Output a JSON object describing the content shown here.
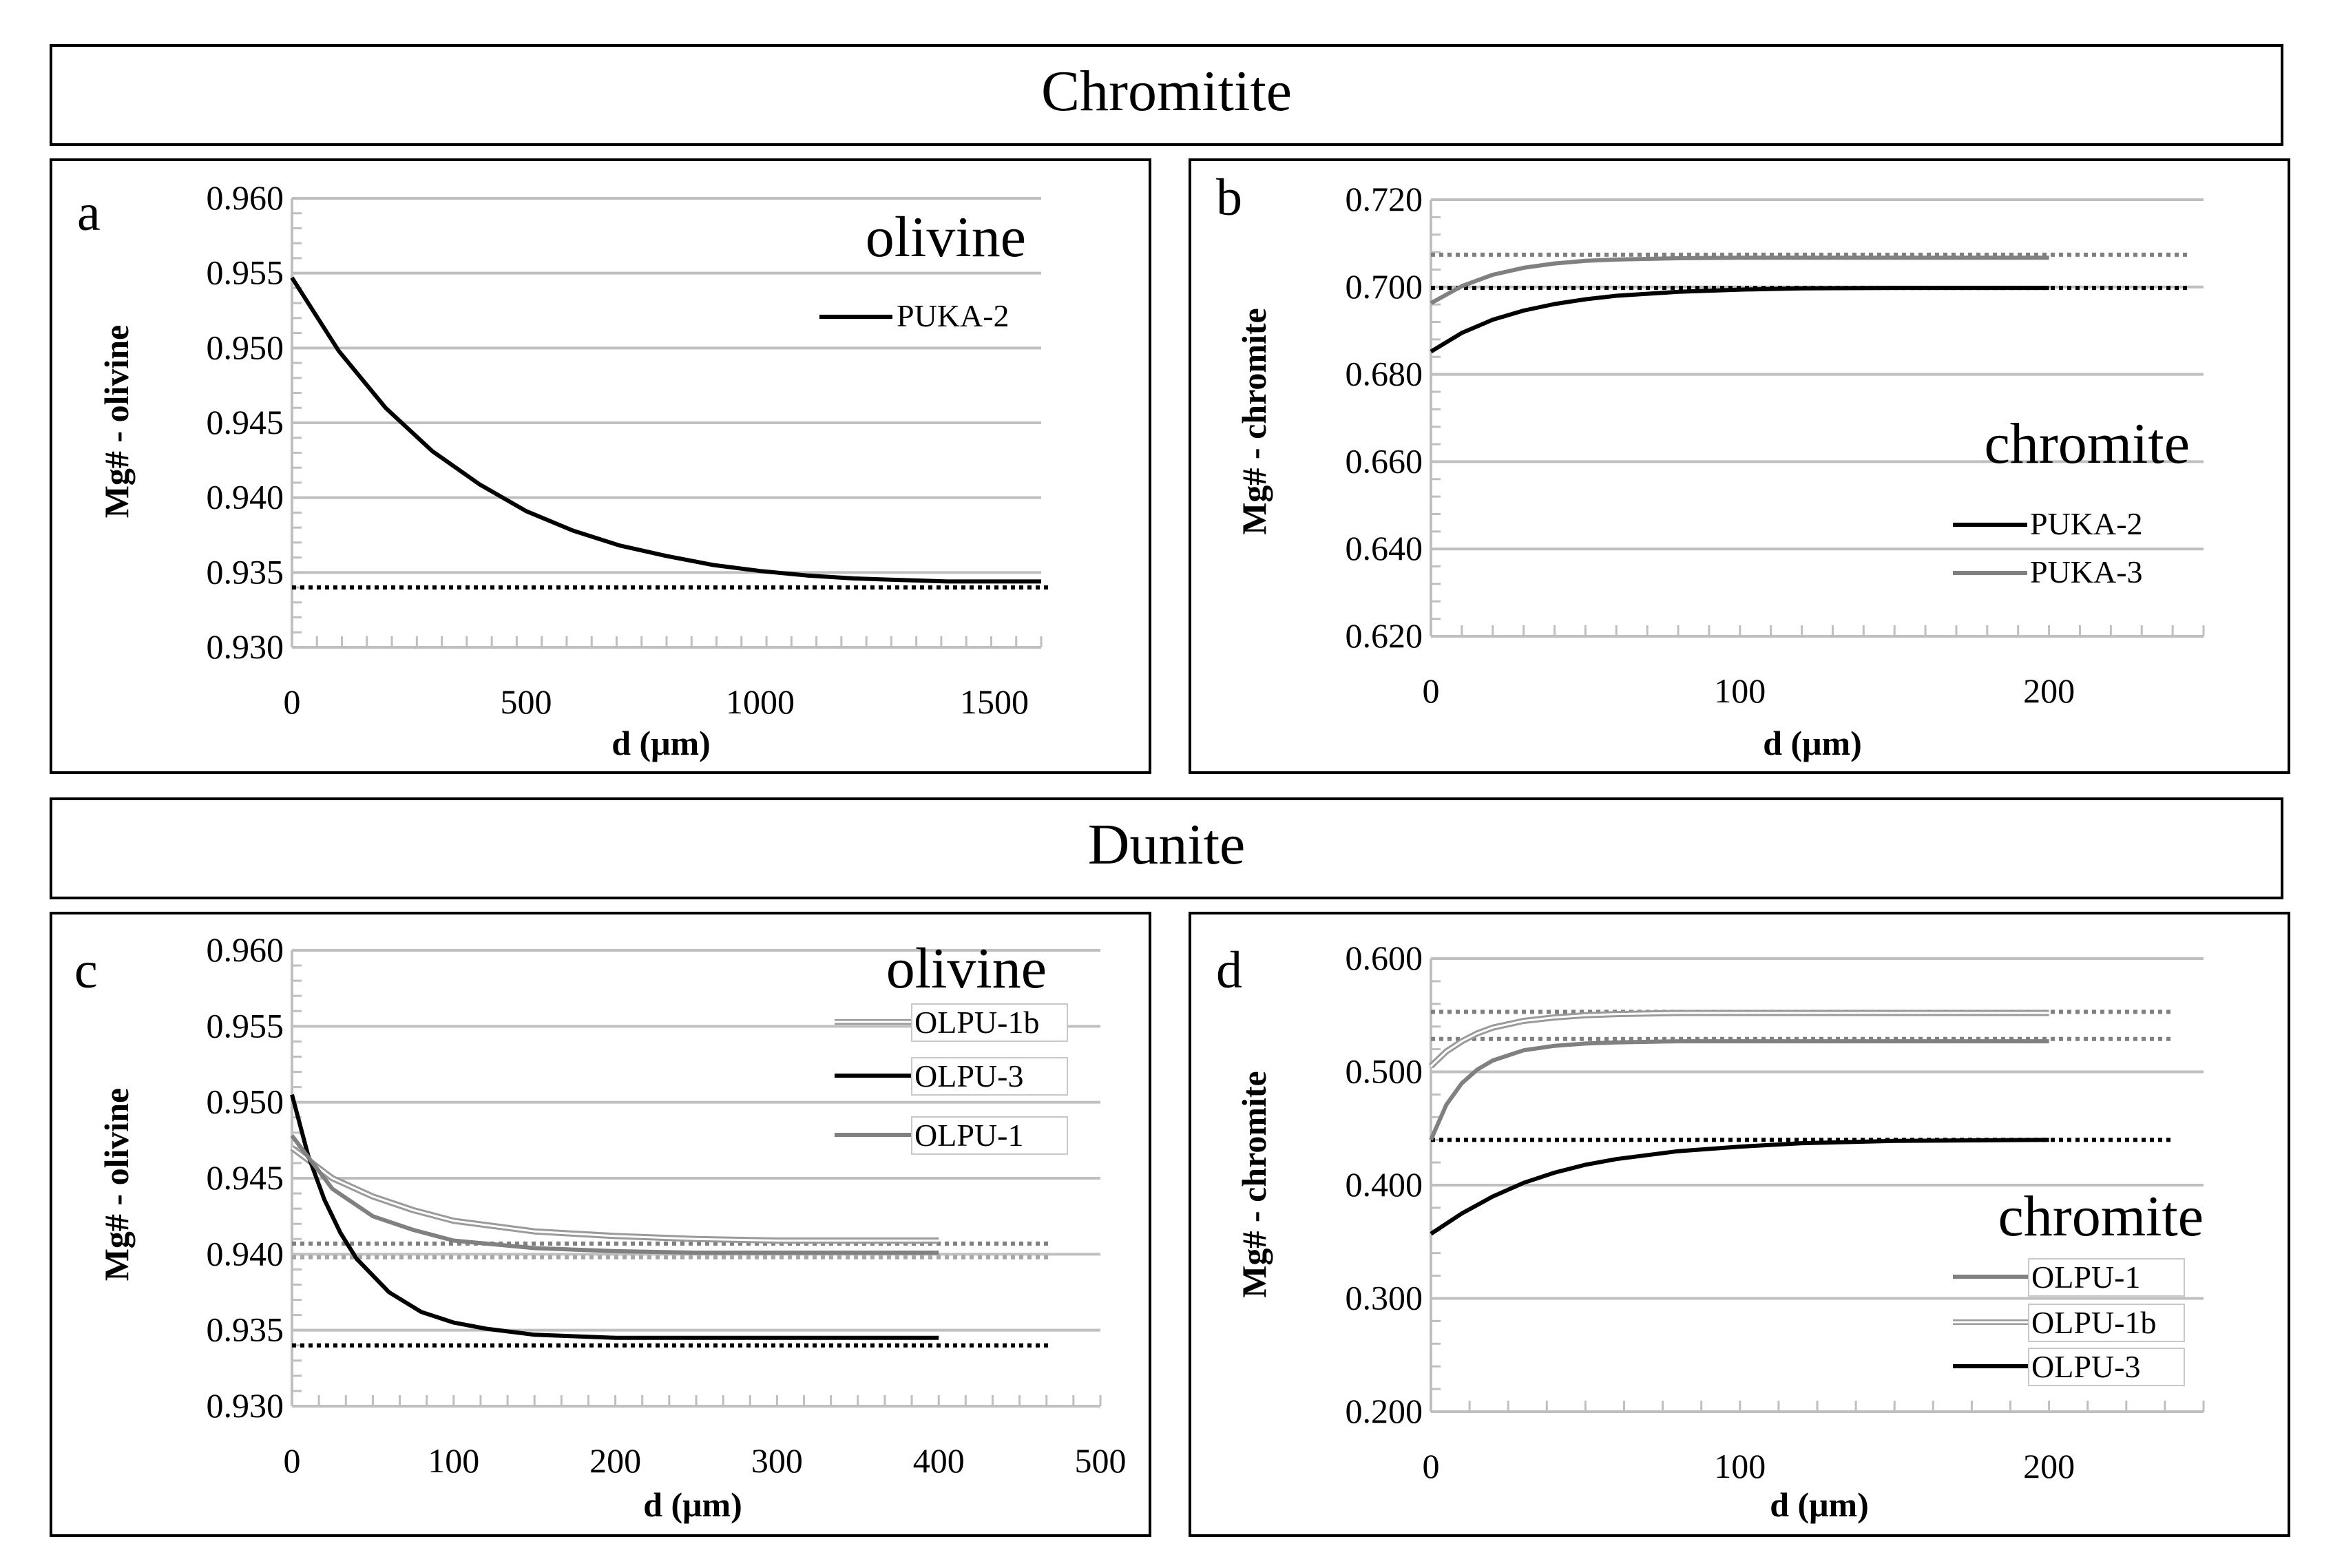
{
  "sections": [
    {
      "title": "Chromitite"
    },
    {
      "title": "Dunite"
    }
  ],
  "colors": {
    "black": "#000000",
    "dark_gray": "#808080",
    "light_gray": "#a6a6a6",
    "gridline": "#bfbfbf"
  },
  "chart_data": [
    {
      "panel": "a",
      "type": "line",
      "mineral_label": "olivine",
      "xlabel": "d (μm)",
      "ylabel": "Mg# - olivine",
      "xlim": [
        0,
        1600
      ],
      "ylim": [
        0.93,
        0.96
      ],
      "xticks": [
        "0",
        "500",
        "1000",
        "1500"
      ],
      "xtick_values": [
        0,
        500,
        1000,
        1500
      ],
      "yticks": [
        "0.930",
        "0.935",
        "0.940",
        "0.945",
        "0.950",
        "0.955",
        "0.960"
      ],
      "ytick_values": [
        0.93,
        0.935,
        0.94,
        0.945,
        0.95,
        0.955,
        0.96
      ],
      "legend": [
        "PUKA-2"
      ],
      "series": [
        {
          "name": "PUKA-2",
          "style": "black",
          "x": [
            0,
            100,
            200,
            300,
            400,
            500,
            600,
            700,
            800,
            900,
            1000,
            1100,
            1200,
            1300,
            1400,
            1500,
            1600
          ],
          "y": [
            0.9547,
            0.9498,
            0.946,
            0.9431,
            0.9409,
            0.9391,
            0.9378,
            0.9368,
            0.9361,
            0.9355,
            0.9351,
            0.9348,
            0.9346,
            0.9345,
            0.9344,
            0.9344,
            0.9344
          ]
        }
      ],
      "reference_lines": [
        {
          "y": 0.934,
          "style": "black",
          "x_end": 1620
        }
      ]
    },
    {
      "panel": "b",
      "type": "line",
      "mineral_label": "chromite",
      "xlabel": "d (μm)",
      "ylabel": "Mg# - chromite",
      "xlim": [
        0,
        250
      ],
      "ylim": [
        0.62,
        0.72
      ],
      "xticks": [
        "0",
        "100",
        "200"
      ],
      "xtick_values": [
        0,
        100,
        200
      ],
      "yticks": [
        "0.620",
        "0.640",
        "0.660",
        "0.680",
        "0.700",
        "0.720"
      ],
      "ytick_values": [
        0.62,
        0.64,
        0.66,
        0.68,
        0.7,
        0.72
      ],
      "legend": [
        "PUKA-2",
        "PUKA-3"
      ],
      "series": [
        {
          "name": "PUKA-2",
          "style": "black",
          "x": [
            0,
            10,
            20,
            30,
            40,
            50,
            60,
            80,
            100,
            120,
            150,
            200
          ],
          "y": [
            0.6852,
            0.6895,
            0.6925,
            0.6946,
            0.6961,
            0.6972,
            0.698,
            0.6989,
            0.6994,
            0.6997,
            0.6998,
            0.6998
          ]
        },
        {
          "name": "PUKA-3",
          "style": "dark_gray",
          "x": [
            0,
            10,
            20,
            30,
            40,
            50,
            60,
            80,
            100,
            150,
            200
          ],
          "y": [
            0.6963,
            0.7002,
            0.7028,
            0.7044,
            0.7054,
            0.706,
            0.7063,
            0.7066,
            0.7067,
            0.7067,
            0.7067
          ]
        }
      ],
      "reference_lines": [
        {
          "y": 0.7074,
          "style": "dark_gray",
          "x_end": 245
        },
        {
          "y": 0.6998,
          "style": "black",
          "x_end": 245
        }
      ]
    },
    {
      "panel": "c",
      "type": "line",
      "mineral_label": "olivine",
      "xlabel": "d (μm)",
      "ylabel": "Mg# - olivine",
      "xlim": [
        0,
        500
      ],
      "ylim": [
        0.93,
        0.96
      ],
      "xticks": [
        "0",
        "100",
        "200",
        "300",
        "400",
        "500"
      ],
      "xtick_values": [
        0,
        100,
        200,
        300,
        400,
        500
      ],
      "yticks": [
        "0.930",
        "0.935",
        "0.940",
        "0.945",
        "0.950",
        "0.955",
        "0.960"
      ],
      "ytick_values": [
        0.93,
        0.935,
        0.94,
        0.945,
        0.95,
        0.955,
        0.96
      ],
      "legend": [
        "OLPU-1b",
        "OLPU-3",
        "OLPU-1"
      ],
      "series": [
        {
          "name": "OLPU-1b",
          "style": "double",
          "x": [
            0,
            25,
            50,
            75,
            100,
            150,
            200,
            250,
            300,
            350,
            400
          ],
          "y": [
            0.947,
            0.945,
            0.9438,
            0.9429,
            0.9422,
            0.9415,
            0.9412,
            0.941,
            0.9409,
            0.9409,
            0.9409
          ]
        },
        {
          "name": "OLPU-3",
          "style": "black",
          "x": [
            0,
            10,
            20,
            30,
            40,
            60,
            80,
            100,
            120,
            150,
            200,
            250,
            300,
            400
          ],
          "y": [
            0.9505,
            0.9465,
            0.9436,
            0.9414,
            0.9397,
            0.9375,
            0.9362,
            0.9355,
            0.9351,
            0.9347,
            0.9345,
            0.9345,
            0.9345,
            0.9345
          ]
        },
        {
          "name": "OLPU-1",
          "style": "dark_gray",
          "x": [
            0,
            25,
            50,
            75,
            100,
            150,
            200,
            250,
            300,
            400
          ],
          "y": [
            0.9478,
            0.9443,
            0.9425,
            0.9416,
            0.9409,
            0.9404,
            0.9402,
            0.9401,
            0.9401,
            0.9401
          ]
        }
      ],
      "reference_lines": [
        {
          "y": 0.9407,
          "style": "dark_gray",
          "x_end": 470
        },
        {
          "y": 0.9398,
          "style": "light_gray",
          "x_end": 470
        },
        {
          "y": 0.934,
          "style": "black",
          "x_end": 470
        }
      ]
    },
    {
      "panel": "d",
      "type": "line",
      "mineral_label": "chromite",
      "xlabel": "d (μm)",
      "ylabel": "Mg# - chromite",
      "xlim": [
        0,
        250
      ],
      "ylim": [
        0.2,
        0.6
      ],
      "xticks": [
        "0",
        "100",
        "200"
      ],
      "xtick_values": [
        0,
        100,
        200
      ],
      "yticks": [
        "0.200",
        "0.300",
        "0.400",
        "0.500",
        "0.600"
      ],
      "ytick_values": [
        0.2,
        0.3,
        0.4,
        0.5,
        0.6
      ],
      "legend": [
        "OLPU-1",
        "OLPU-1b",
        "OLPU-3"
      ],
      "series": [
        {
          "name": "OLPU-1",
          "style": "dark_gray",
          "x": [
            0,
            5,
            10,
            15,
            20,
            30,
            40,
            50,
            60,
            80,
            100,
            150,
            200
          ],
          "y": [
            0.44,
            0.471,
            0.49,
            0.502,
            0.51,
            0.519,
            0.523,
            0.525,
            0.526,
            0.527,
            0.527,
            0.527,
            0.527
          ]
        },
        {
          "name": "OLPU-1b",
          "style": "double",
          "x": [
            0,
            5,
            10,
            15,
            20,
            30,
            40,
            50,
            60,
            80,
            100,
            150,
            200
          ],
          "y": [
            0.505,
            0.518,
            0.527,
            0.534,
            0.539,
            0.545,
            0.548,
            0.55,
            0.551,
            0.552,
            0.552,
            0.552,
            0.552
          ]
        },
        {
          "name": "OLPU-3",
          "style": "black",
          "x": [
            0,
            10,
            20,
            30,
            40,
            50,
            60,
            80,
            100,
            120,
            150,
            200
          ],
          "y": [
            0.357,
            0.375,
            0.39,
            0.402,
            0.411,
            0.418,
            0.423,
            0.43,
            0.434,
            0.437,
            0.439,
            0.44
          ]
        }
      ],
      "reference_lines": [
        {
          "y": 0.553,
          "style": "dark_gray",
          "x_end": 240
        },
        {
          "y": 0.529,
          "style": "dark_gray",
          "x_end": 240
        },
        {
          "y": 0.44,
          "style": "black",
          "x_end": 240
        }
      ]
    }
  ]
}
